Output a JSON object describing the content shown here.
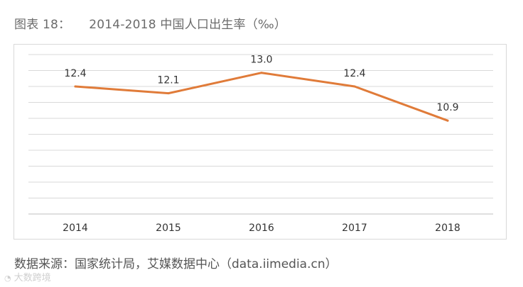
{
  "figure_label": "图表 18：",
  "figure_title": "2014-2018 中国人口出生率（‰）",
  "source": "数据来源：国家统计局，艾媒数据中心（data.iimedia.cn）",
  "watermark": {
    "icon": "k-logo-icon",
    "text": "大数跨境"
  },
  "chart_data": {
    "type": "line",
    "title": "2014-2018 中国人口出生率（‰）",
    "xlabel": "",
    "ylabel": "",
    "categories": [
      "2014",
      "2015",
      "2016",
      "2017",
      "2018"
    ],
    "series": [
      {
        "name": "人口出生率",
        "values": [
          12.4,
          12.1,
          13.0,
          12.4,
          10.9
        ],
        "labels": [
          "12.4",
          "12.1",
          "13.0",
          "12.4",
          "10.9"
        ],
        "color": "#E07B39"
      }
    ],
    "ylim": [
      6.8,
      13.8
    ],
    "gridlines": 10,
    "grid": true,
    "legend": "none"
  }
}
